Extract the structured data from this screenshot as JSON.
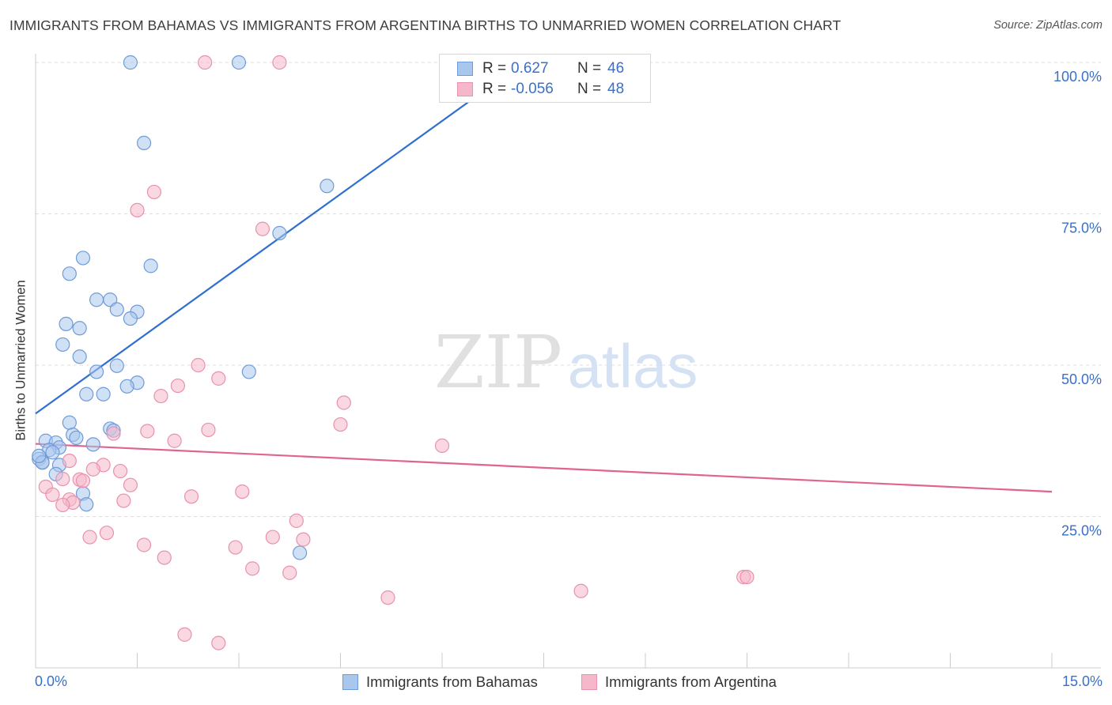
{
  "header": {
    "title": "IMMIGRANTS FROM BAHAMAS VS IMMIGRANTS FROM ARGENTINA BIRTHS TO UNMARRIED WOMEN CORRELATION CHART",
    "source": "Source: ZipAtlas.com"
  },
  "legend": {
    "rows": [
      {
        "r_label": "R =",
        "r_value": "0.627",
        "n_label": "N =",
        "n_value": "46"
      },
      {
        "r_label": "R =",
        "r_value": "-0.056",
        "n_label": "N =",
        "n_value": "48"
      }
    ]
  },
  "watermark": {
    "zip": "ZIP",
    "atlas": "atlas"
  },
  "chart_data": {
    "type": "scatter",
    "title": "IMMIGRANTS FROM BAHAMAS VS IMMIGRANTS FROM ARGENTINA BIRTHS TO UNMARRIED WOMEN CORRELATION CHART",
    "xlabel": "",
    "ylabel": "Births to Unmarried Women",
    "xlim": [
      0,
      15
    ],
    "ylim": [
      0,
      100
    ],
    "x_tick_labels": [
      "0.0%",
      "15.0%"
    ],
    "y_tick_labels": [
      "25.0%",
      "50.0%",
      "75.0%",
      "100.0%"
    ],
    "y_ticks": [
      25,
      50,
      75,
      100
    ],
    "grid": true,
    "legend_position": "top-center",
    "colors": {
      "bahamas_fill": "#a9c6ec",
      "bahamas_stroke": "#6f9bd8",
      "bahamas_line": "#2f6fd0",
      "argentina_fill": "#f5b8cb",
      "argentina_stroke": "#e991ad",
      "argentina_line": "#e0658e",
      "axis_text": "#3a70c8"
    },
    "series": [
      {
        "name": "Immigrants from Bahamas",
        "points": [
          [
            1.4,
            100
          ],
          [
            3.0,
            100
          ],
          [
            6.8,
            100
          ],
          [
            8.9,
            100
          ],
          [
            1.6,
            86.7
          ],
          [
            4.3,
            79.6
          ],
          [
            3.6,
            71.8
          ],
          [
            0.7,
            67.7
          ],
          [
            1.7,
            66.4
          ],
          [
            0.5,
            65.1
          ],
          [
            0.9,
            60.8
          ],
          [
            1.1,
            60.8
          ],
          [
            1.2,
            59.2
          ],
          [
            1.5,
            58.8
          ],
          [
            1.4,
            57.7
          ],
          [
            0.45,
            56.8
          ],
          [
            0.65,
            56.1
          ],
          [
            0.4,
            53.4
          ],
          [
            0.65,
            51.4
          ],
          [
            1.2,
            49.9
          ],
          [
            0.9,
            48.9
          ],
          [
            3.15,
            48.9
          ],
          [
            1.5,
            47.1
          ],
          [
            1.35,
            46.5
          ],
          [
            0.75,
            45.2
          ],
          [
            1.0,
            45.2
          ],
          [
            0.5,
            40.5
          ],
          [
            1.1,
            39.5
          ],
          [
            1.15,
            39.2
          ],
          [
            0.55,
            38.5
          ],
          [
            0.6,
            38.0
          ],
          [
            0.15,
            37.5
          ],
          [
            0.3,
            37.2
          ],
          [
            0.85,
            36.9
          ],
          [
            0.35,
            36.4
          ],
          [
            0.2,
            36.0
          ],
          [
            0.25,
            35.6
          ],
          [
            0.05,
            34.5
          ],
          [
            0.1,
            34.0
          ],
          [
            0.1,
            33.9
          ],
          [
            0.35,
            33.5
          ],
          [
            0.3,
            32.0
          ],
          [
            0.7,
            28.8
          ],
          [
            0.75,
            27.0
          ],
          [
            3.9,
            19.0
          ],
          [
            0.05,
            35.0
          ]
        ],
        "trend": {
          "x": [
            0,
            7.2
          ],
          "y": [
            42,
            100
          ]
        }
      },
      {
        "name": "Immigrants from Argentina",
        "points": [
          [
            2.5,
            100
          ],
          [
            3.6,
            100
          ],
          [
            1.75,
            78.6
          ],
          [
            1.5,
            75.6
          ],
          [
            3.35,
            72.5
          ],
          [
            2.4,
            50.0
          ],
          [
            2.7,
            47.8
          ],
          [
            2.1,
            46.6
          ],
          [
            1.85,
            44.9
          ],
          [
            4.55,
            43.8
          ],
          [
            4.5,
            40.2
          ],
          [
            2.55,
            39.3
          ],
          [
            1.65,
            39.1
          ],
          [
            1.15,
            38.7
          ],
          [
            2.05,
            37.5
          ],
          [
            6.0,
            36.7
          ],
          [
            0.5,
            34.2
          ],
          [
            1.0,
            33.5
          ],
          [
            0.85,
            32.8
          ],
          [
            1.25,
            32.5
          ],
          [
            0.4,
            31.2
          ],
          [
            0.65,
            31.1
          ],
          [
            0.7,
            30.9
          ],
          [
            3.05,
            29.1
          ],
          [
            1.4,
            30.2
          ],
          [
            0.15,
            29.9
          ],
          [
            0.25,
            28.6
          ],
          [
            0.5,
            27.8
          ],
          [
            2.3,
            28.3
          ],
          [
            1.3,
            27.6
          ],
          [
            0.55,
            27.3
          ],
          [
            0.4,
            26.9
          ],
          [
            3.85,
            24.3
          ],
          [
            1.05,
            22.3
          ],
          [
            0.8,
            21.6
          ],
          [
            3.5,
            21.6
          ],
          [
            3.95,
            21.2
          ],
          [
            1.6,
            20.3
          ],
          [
            2.95,
            19.9
          ],
          [
            1.9,
            18.2
          ],
          [
            3.2,
            16.4
          ],
          [
            3.75,
            15.7
          ],
          [
            10.45,
            15.0
          ],
          [
            10.5,
            15.0
          ],
          [
            8.05,
            12.7
          ],
          [
            5.2,
            11.6
          ],
          [
            2.2,
            5.5
          ],
          [
            2.7,
            4.1
          ]
        ],
        "trend": {
          "x": [
            0,
            15
          ],
          "y": [
            37,
            29.1
          ]
        }
      }
    ]
  },
  "bottom_legend": [
    {
      "label": "Immigrants from Bahamas"
    },
    {
      "label": "Immigrants from Argentina"
    }
  ]
}
